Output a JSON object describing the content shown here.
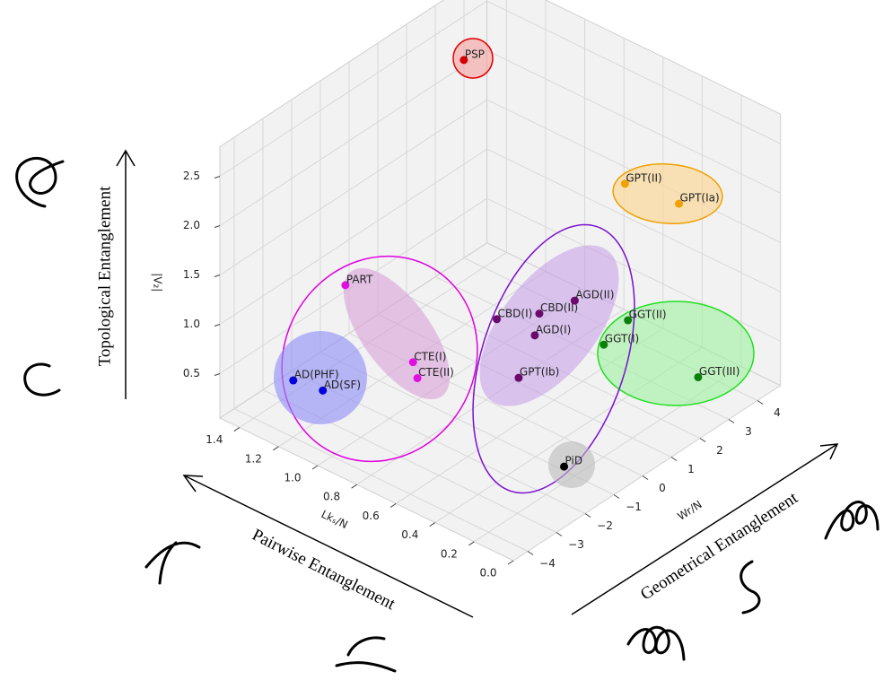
{
  "chart_data": {
    "type": "scatter3d",
    "xlabel": "Lkₛ/N",
    "ylabel": "Wr/N",
    "zlabel": "|V₂|",
    "xlim": [
      0,
      1.5
    ],
    "ylim": [
      -4.5,
      4.8
    ],
    "zlim": [
      0.05,
      2.8
    ],
    "xticks": [
      {
        "value": 0,
        "label": "0.0"
      },
      0.2,
      0.4,
      0.6,
      0.8,
      {
        "value": 1,
        "label": "1.0"
      },
      1.2,
      1.4
    ],
    "yticks": [
      {
        "value": -4,
        "label": "−4"
      },
      {
        "value": -3,
        "label": "−3"
      },
      {
        "value": -2,
        "label": "−2"
      },
      {
        "value": -1,
        "label": "−1"
      },
      0,
      1,
      2,
      3,
      4
    ],
    "zticks": [
      0.5,
      {
        "value": 1,
        "label": "1.0"
      },
      1.5,
      {
        "value": 2,
        "label": "2.0"
      },
      2.5
    ],
    "grid": true,
    "labels": [
      "PSP",
      "PART",
      "CTE(I)",
      "CTE(II)",
      "AD(PHF)",
      "AD(SF)",
      "CBD(I)",
      "CBD(II)",
      "AGD(II)",
      "AGD(I)",
      "GPT(Ib)",
      "PiD",
      "GPT(II)",
      "GPT(Ia)",
      "GGT(II)",
      "GGT(I)",
      "GGT(III)"
    ],
    "x": [
      1.26,
      1.13,
      0.94,
      0.9,
      1.21,
      1.1,
      0.71,
      0.61,
      0.52,
      0.57,
      0.56,
      0.25,
      0.41,
      0.25,
      0.32,
      0.37,
      0.08
    ],
    "y": [
      2.36,
      -2.65,
      -1.59,
      -1.71,
      -3.92,
      -3.64,
      -0.24,
      0.56,
      1.18,
      0.13,
      -0.5,
      -1.03,
      2.18,
      2.97,
      1.67,
      1.17,
      2.48
    ],
    "z": [
      2.6,
      1.4,
      0.6,
      0.5,
      0.6,
      0.55,
      1.0,
      1.0,
      1.1,
      0.9,
      0.6,
      0.1,
      2.2,
      2.0,
      1.0,
      0.8,
      0.5
    ],
    "colors": [
      "#d40000",
      "#e010e0",
      "#e010e0",
      "#e010e0",
      "#0000e0",
      "#0000e0",
      "#6a0a6a",
      "#6a0a6a",
      "#6a0a6a",
      "#6a0a6a",
      "#6a0a6a",
      "#000000",
      "#f0a000",
      "#f0a000",
      "#0a800a",
      "#0a800a",
      "#0a800a"
    ],
    "annotations": [
      "Topological Entanglement",
      "Pairwise Entanglement",
      "Geometrical Entanglement"
    ]
  }
}
